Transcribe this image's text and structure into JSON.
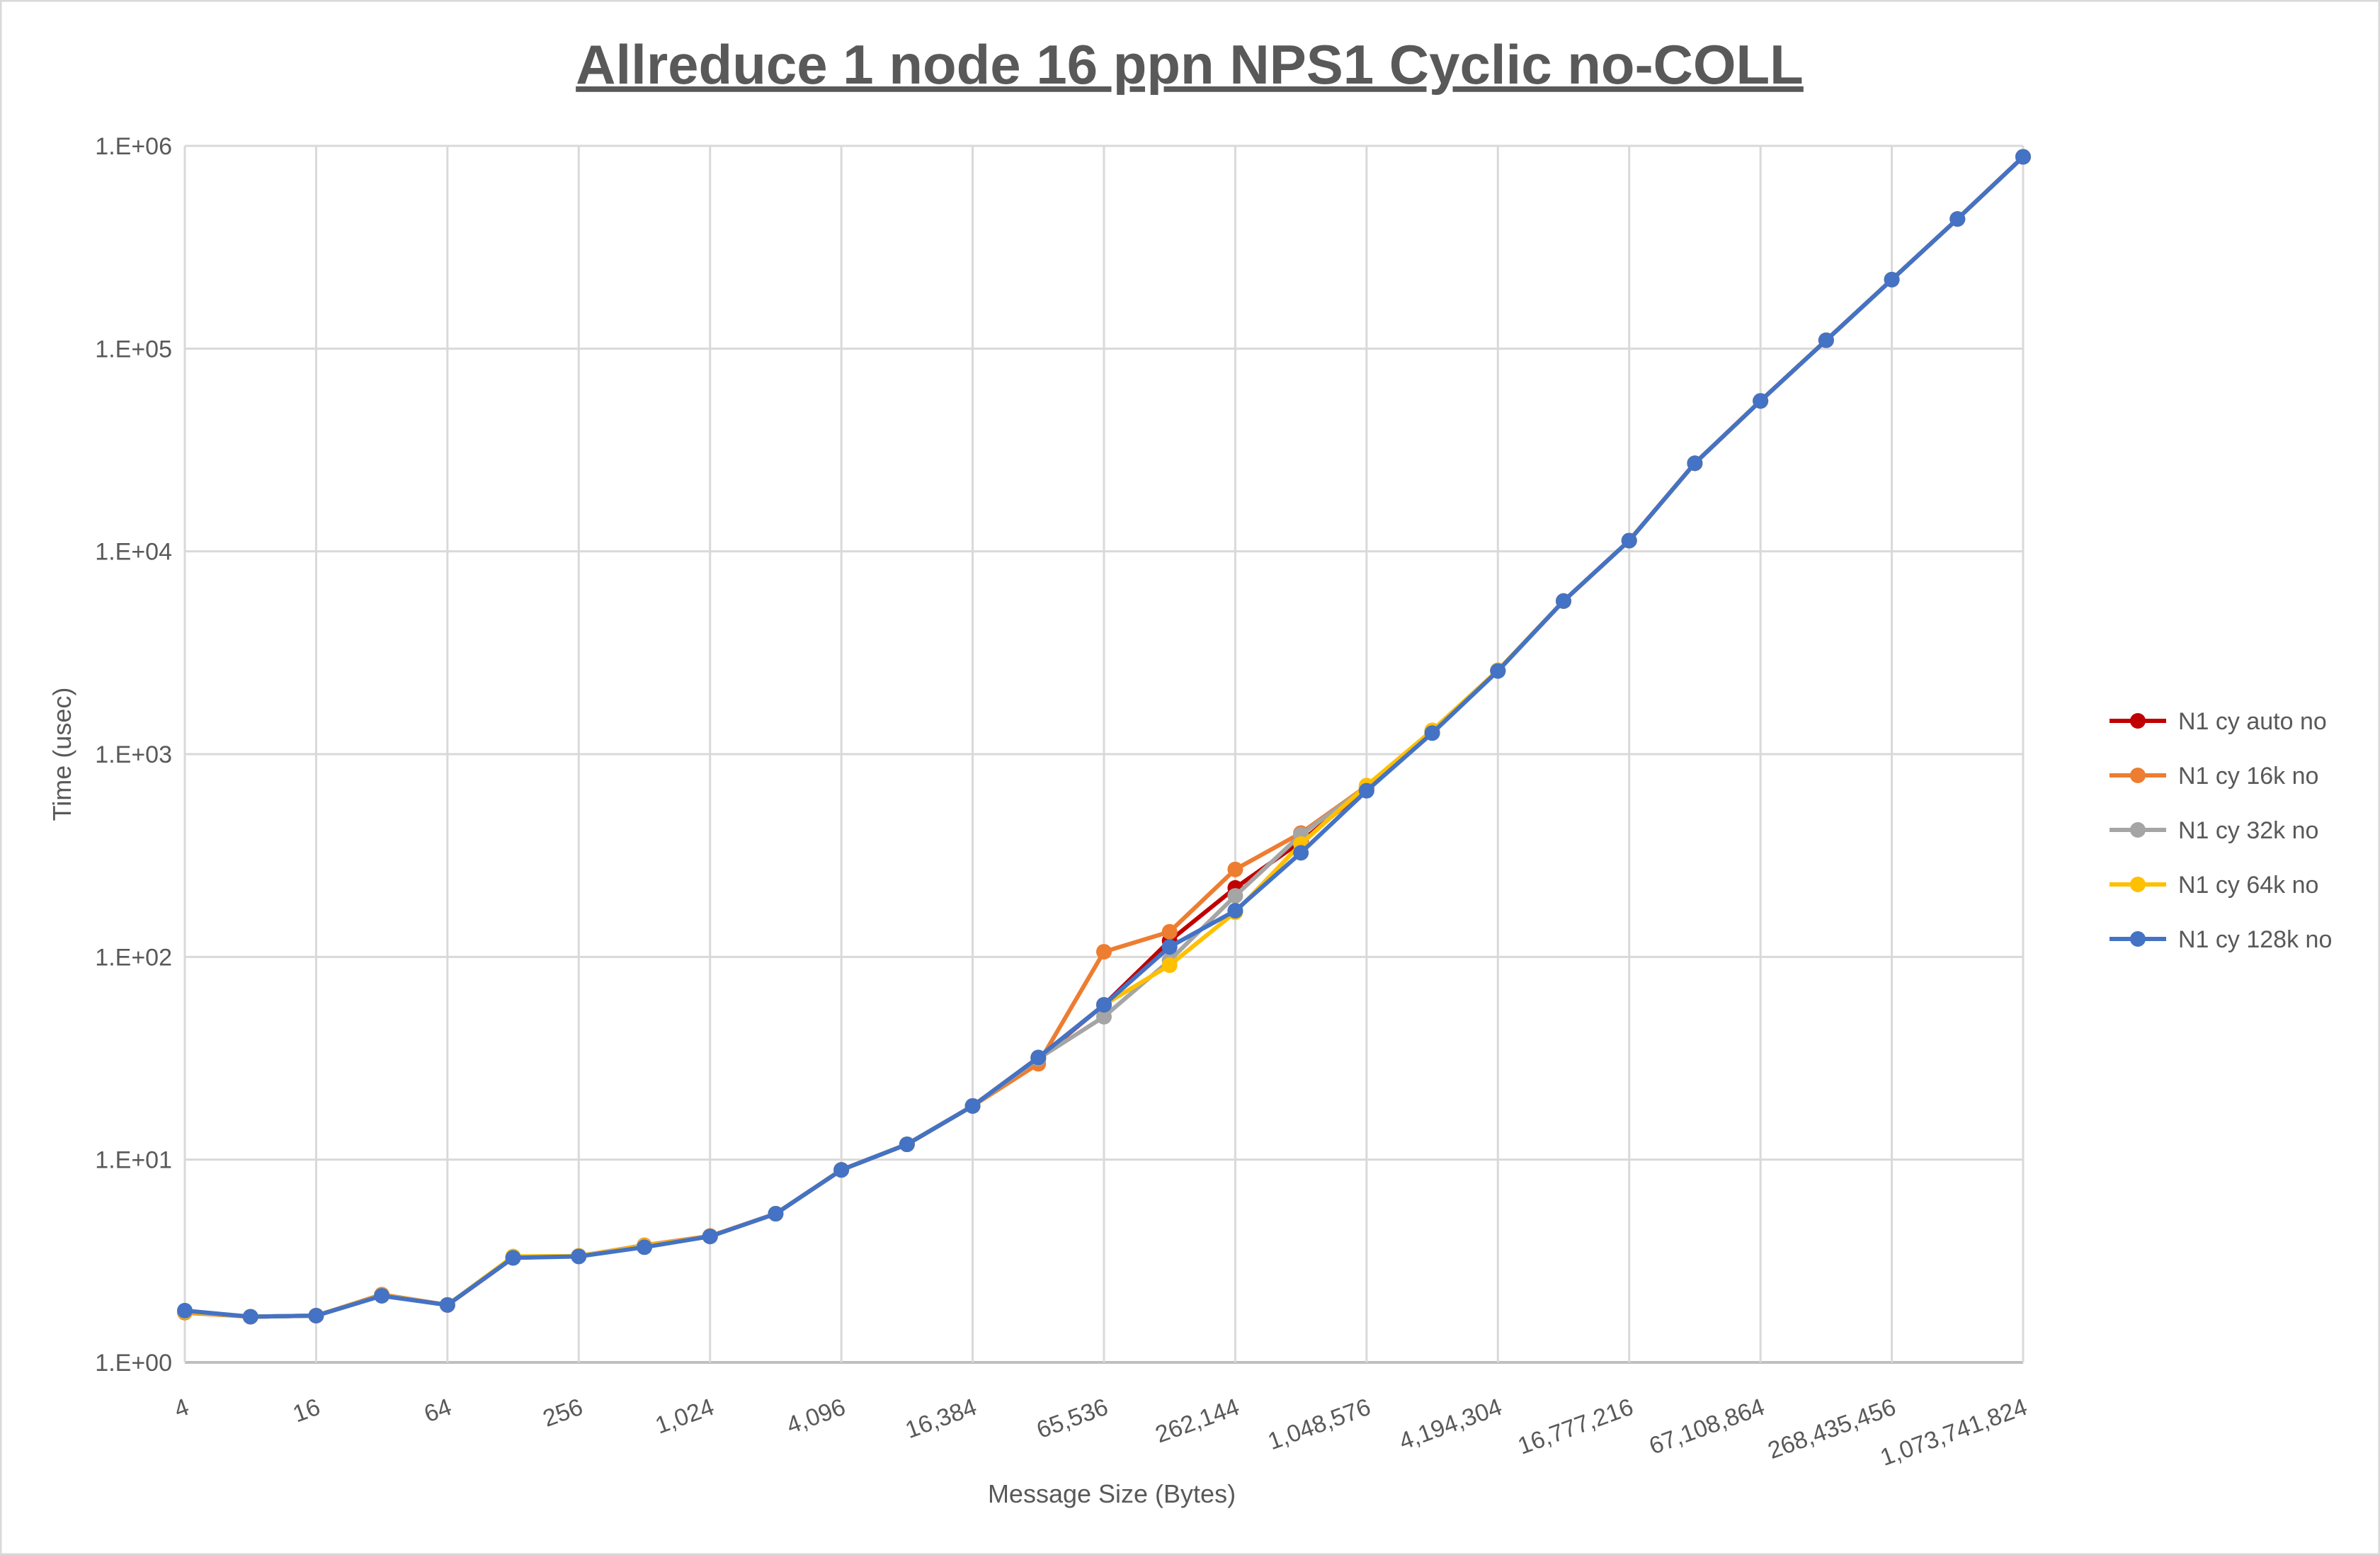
{
  "chart_data": {
    "type": "line",
    "title": "Allreduce 1 node 16 ppn NPS1 Cyclic no-COLL",
    "xlabel": "Message Size (Bytes)",
    "ylabel": "Time (usec)",
    "x_scale": "log2",
    "y_scale": "log10",
    "ylim": [
      1,
      1000000
    ],
    "grid": true,
    "legend_position": "right",
    "x": [
      4,
      8,
      16,
      32,
      64,
      128,
      256,
      512,
      1024,
      2048,
      4096,
      8192,
      16384,
      32768,
      65536,
      131072,
      262144,
      524288,
      1048576,
      2097152,
      4194304,
      8388608,
      16777216,
      33554432,
      67108864,
      134217728,
      268435456,
      536870912,
      1073741824
    ],
    "x_tick_labels": [
      "4",
      "16",
      "64",
      "256",
      "1,024",
      "4,096",
      "16,384",
      "65,536",
      "262,144",
      "1,048,576",
      "4,194,304",
      "16,777,216",
      "67,108,864",
      "268,435,456",
      "1,073,741,824"
    ],
    "x_tick_values": [
      4,
      16,
      64,
      256,
      1024,
      4096,
      16384,
      65536,
      262144,
      1048576,
      4194304,
      16777216,
      67108864,
      268435456,
      1073741824
    ],
    "y_tick_labels": [
      "1.E+00",
      "1.E+01",
      "1.E+02",
      "1.E+03",
      "1.E+04",
      "1.E+05",
      "1.E+06"
    ],
    "y_tick_values": [
      1,
      10,
      100,
      1000,
      10000,
      100000,
      1000000
    ],
    "series": [
      {
        "name": "N1 cy auto no",
        "color": "#C00000",
        "values": [
          1.78,
          1.68,
          1.7,
          2.14,
          1.92,
          3.28,
          3.35,
          3.75,
          4.18,
          5.41,
          8.9,
          11.9,
          18.4,
          31.5,
          58,
          120,
          219,
          370,
          680,
          1280,
          2580,
          5690,
          11300,
          27200,
          55200,
          110000,
          219000,
          436000,
          883000
        ]
      },
      {
        "name": "N1 cy 16k no",
        "color": "#ED7D31",
        "values": [
          1.76,
          1.68,
          1.7,
          2.16,
          1.92,
          3.28,
          3.35,
          3.78,
          4.2,
          5.41,
          8.9,
          11.9,
          18.4,
          29.7,
          106,
          133,
          270,
          408,
          695,
          1300,
          2590,
          5690,
          11300,
          27200,
          55200,
          110000,
          219000,
          436000,
          883000
        ]
      },
      {
        "name": "N1 cy 32k no",
        "color": "#A5A5A5",
        "values": [
          1.78,
          1.68,
          1.7,
          2.14,
          1.92,
          3.3,
          3.35,
          3.75,
          4.18,
          5.41,
          8.9,
          11.9,
          18.4,
          31.5,
          50.7,
          96,
          200,
          400,
          690,
          1300,
          2590,
          5690,
          11300,
          27200,
          55200,
          110000,
          219000,
          436000,
          883000
        ]
      },
      {
        "name": "N1 cy 64k no",
        "color": "#FFC000",
        "values": [
          1.78,
          1.68,
          1.7,
          2.14,
          1.92,
          3.33,
          3.35,
          3.75,
          4.18,
          5.41,
          8.9,
          11.9,
          18.4,
          31.9,
          58,
          91,
          166,
          360,
          700,
          1310,
          2590,
          5690,
          11300,
          27200,
          55200,
          110000,
          219000,
          436000,
          883000
        ]
      },
      {
        "name": "N1 cy 128k no",
        "color": "#4472C4",
        "values": [
          1.8,
          1.68,
          1.7,
          2.13,
          1.92,
          3.28,
          3.33,
          3.7,
          4.18,
          5.41,
          8.9,
          11.9,
          18.4,
          31.9,
          58,
          112,
          169,
          326,
          660,
          1270,
          2570,
          5690,
          11300,
          27200,
          55200,
          110000,
          219000,
          436000,
          883000
        ]
      }
    ]
  }
}
